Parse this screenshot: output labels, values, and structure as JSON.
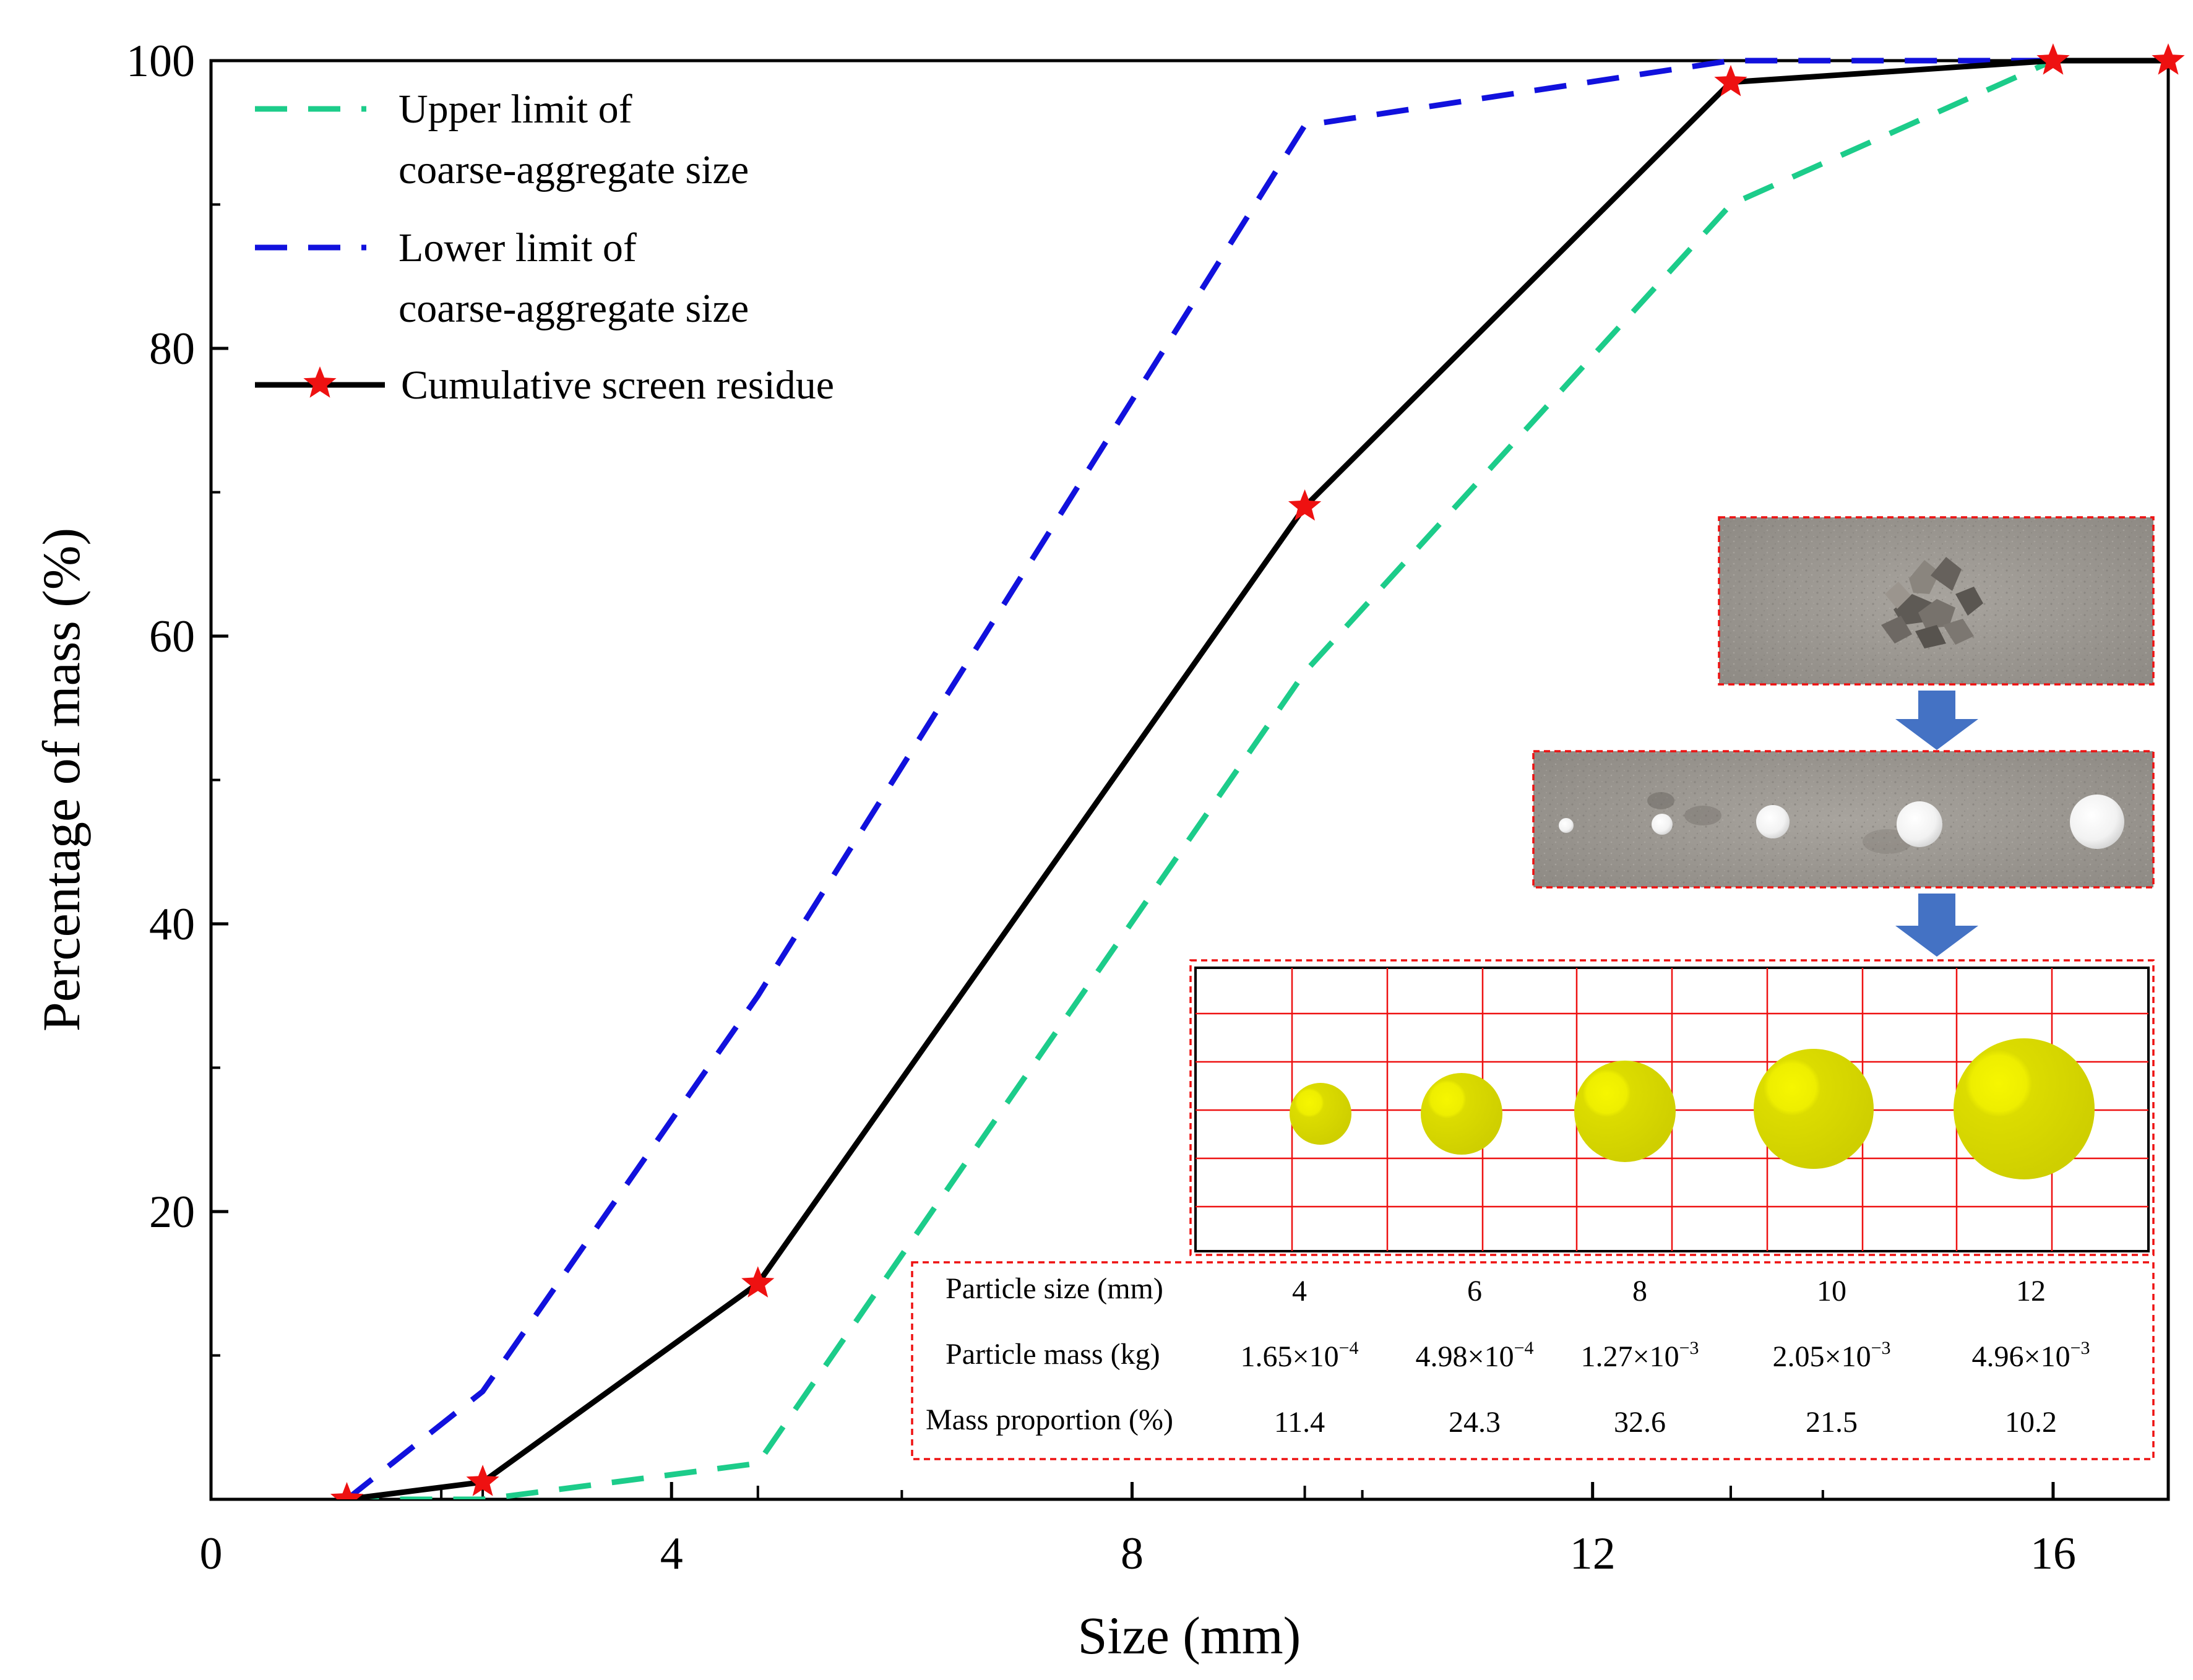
{
  "chart_data": {
    "type": "line",
    "xlabel": "Size (mm)",
    "ylabel": "Percentage of mass (%)",
    "xlim": [
      0,
      17
    ],
    "ylim": [
      0,
      100
    ],
    "xticks": [
      "0",
      "4",
      "8",
      "12",
      "16"
    ],
    "yticks": [
      "20",
      "40",
      "60",
      "80",
      "100"
    ],
    "grid": false,
    "legend_position": "top-left",
    "series": [
      {
        "name": "Upper limit of coarse-aggregate size",
        "style": "dashed",
        "color": "#1ccc8a",
        "x": [
          1.18,
          2.36,
          4.75,
          9.5,
          13.2,
          16,
          17
        ],
        "y": [
          0,
          0,
          2.5,
          57.5,
          90,
          100,
          100
        ]
      },
      {
        "name": "Lower limit of coarse-aggregate size",
        "style": "dashed",
        "color": "#1111dd",
        "x": [
          1.18,
          2.36,
          4.75,
          9.5,
          13.2,
          16,
          17
        ],
        "y": [
          0,
          7.5,
          35,
          95.5,
          100,
          100,
          100
        ]
      },
      {
        "name": "Cumulative screen residue",
        "style": "solid",
        "marker": "star",
        "color": "#000000",
        "marker_color": "#ee1111",
        "x": [
          1.18,
          2.36,
          4.75,
          9.5,
          13.2,
          16,
          17
        ],
        "y": [
          0,
          1.2,
          15,
          69,
          98.5,
          100,
          100
        ]
      }
    ],
    "legend_lines": [
      [
        "Upper limit of",
        "coarse-aggregate size"
      ],
      [
        "Lower limit of",
        "coarse-aggregate size"
      ],
      [
        "Cumulative screen residue"
      ]
    ],
    "inset_table": {
      "rows": [
        {
          "label": "Particle size (mm)",
          "cells": [
            {
              "base": "4",
              "exp": ""
            },
            {
              "base": "6",
              "exp": ""
            },
            {
              "base": "8",
              "exp": ""
            },
            {
              "base": "10",
              "exp": ""
            },
            {
              "base": "12",
              "exp": ""
            }
          ]
        },
        {
          "label": "Particle mass (kg)",
          "cells": [
            {
              "base": "1.65×10",
              "exp": "−4"
            },
            {
              "base": "4.98×10",
              "exp": "−4"
            },
            {
              "base": "1.27×10",
              "exp": "−3"
            },
            {
              "base": "2.05×10",
              "exp": "−3"
            },
            {
              "base": "4.96×10",
              "exp": "−3"
            }
          ]
        },
        {
          "label": "Mass proportion (%)",
          "cells": [
            {
              "base": "11.4",
              "exp": ""
            },
            {
              "base": "24.3",
              "exp": ""
            },
            {
              "base": "32.6",
              "exp": ""
            },
            {
              "base": "21.5",
              "exp": ""
            },
            {
              "base": "10.2",
              "exp": ""
            }
          ]
        }
      ]
    }
  },
  "colors": {
    "upper_limit": "#1ccc8a",
    "lower_limit": "#1111dd",
    "residue_line": "#000000",
    "residue_marker": "#ee1111",
    "inset_border": "#ee1111",
    "arrow": "#4472c4",
    "sphere": "#d6d600",
    "sphere_highlight": "#f4f400",
    "grid_model": "#ee1111",
    "photo_concrete": "#9a9690"
  }
}
